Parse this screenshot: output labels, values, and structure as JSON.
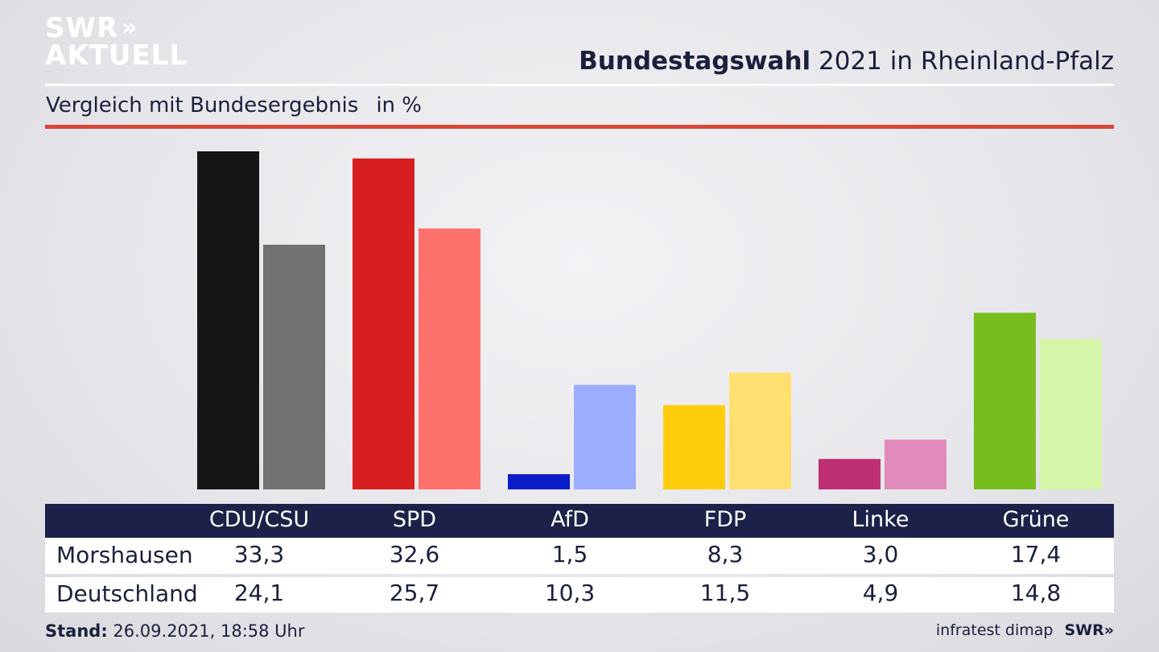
{
  "logo": {
    "line1": "SWR",
    "line2": "AKTUELL",
    "chevrons": "»"
  },
  "header": {
    "title_bold": "Bundestagswahl",
    "title_rest": " 2021 in Rheinland-Pfalz",
    "subtitle": "Vergleich mit Bundesergebnis",
    "unit": "in %"
  },
  "chart_data": {
    "type": "bar",
    "title": "Bundestagswahl 2021 in Rheinland-Pfalz",
    "subtitle": "Vergleich mit Bundesergebnis",
    "ylabel": "in %",
    "categories": [
      "CDU/CSU",
      "SPD",
      "AfD",
      "FDP",
      "Linke",
      "Grüne"
    ],
    "series": [
      {
        "name": "Morshausen",
        "values": [
          33.3,
          32.6,
          1.5,
          8.3,
          3.0,
          17.4
        ],
        "colors": [
          "#151515",
          "#d81f20",
          "#0a1cc8",
          "#ffcc0b",
          "#be2f73",
          "#78bd1f"
        ]
      },
      {
        "name": "Deutschland",
        "values": [
          24.1,
          25.7,
          10.3,
          11.5,
          4.9,
          14.8
        ],
        "colors": [
          "#73716f",
          "#fe726b",
          "#9daeff",
          "#ffdf70",
          "#e18bba",
          "#d5f5a8"
        ]
      }
    ],
    "ylim": [
      0,
      33.3
    ],
    "grid": false,
    "legend": "table-below"
  },
  "table": {
    "headers": [
      "CDU/CSU",
      "SPD",
      "AfD",
      "FDP",
      "Linke",
      "Grüne"
    ],
    "rows": [
      {
        "label": "Morshausen",
        "values": [
          "33,3",
          "32,6",
          "1,5",
          "8,3",
          "3,0",
          "17,4"
        ]
      },
      {
        "label": "Deutschland",
        "values": [
          "24,1",
          "25,7",
          "10,3",
          "11,5",
          "4,9",
          "14,8"
        ]
      }
    ]
  },
  "footer": {
    "stand_label": "Stand:",
    "stand_value": " 26.09.2021, 18:58 Uhr",
    "source": "infratest dimap",
    "brand": "SWR»"
  }
}
